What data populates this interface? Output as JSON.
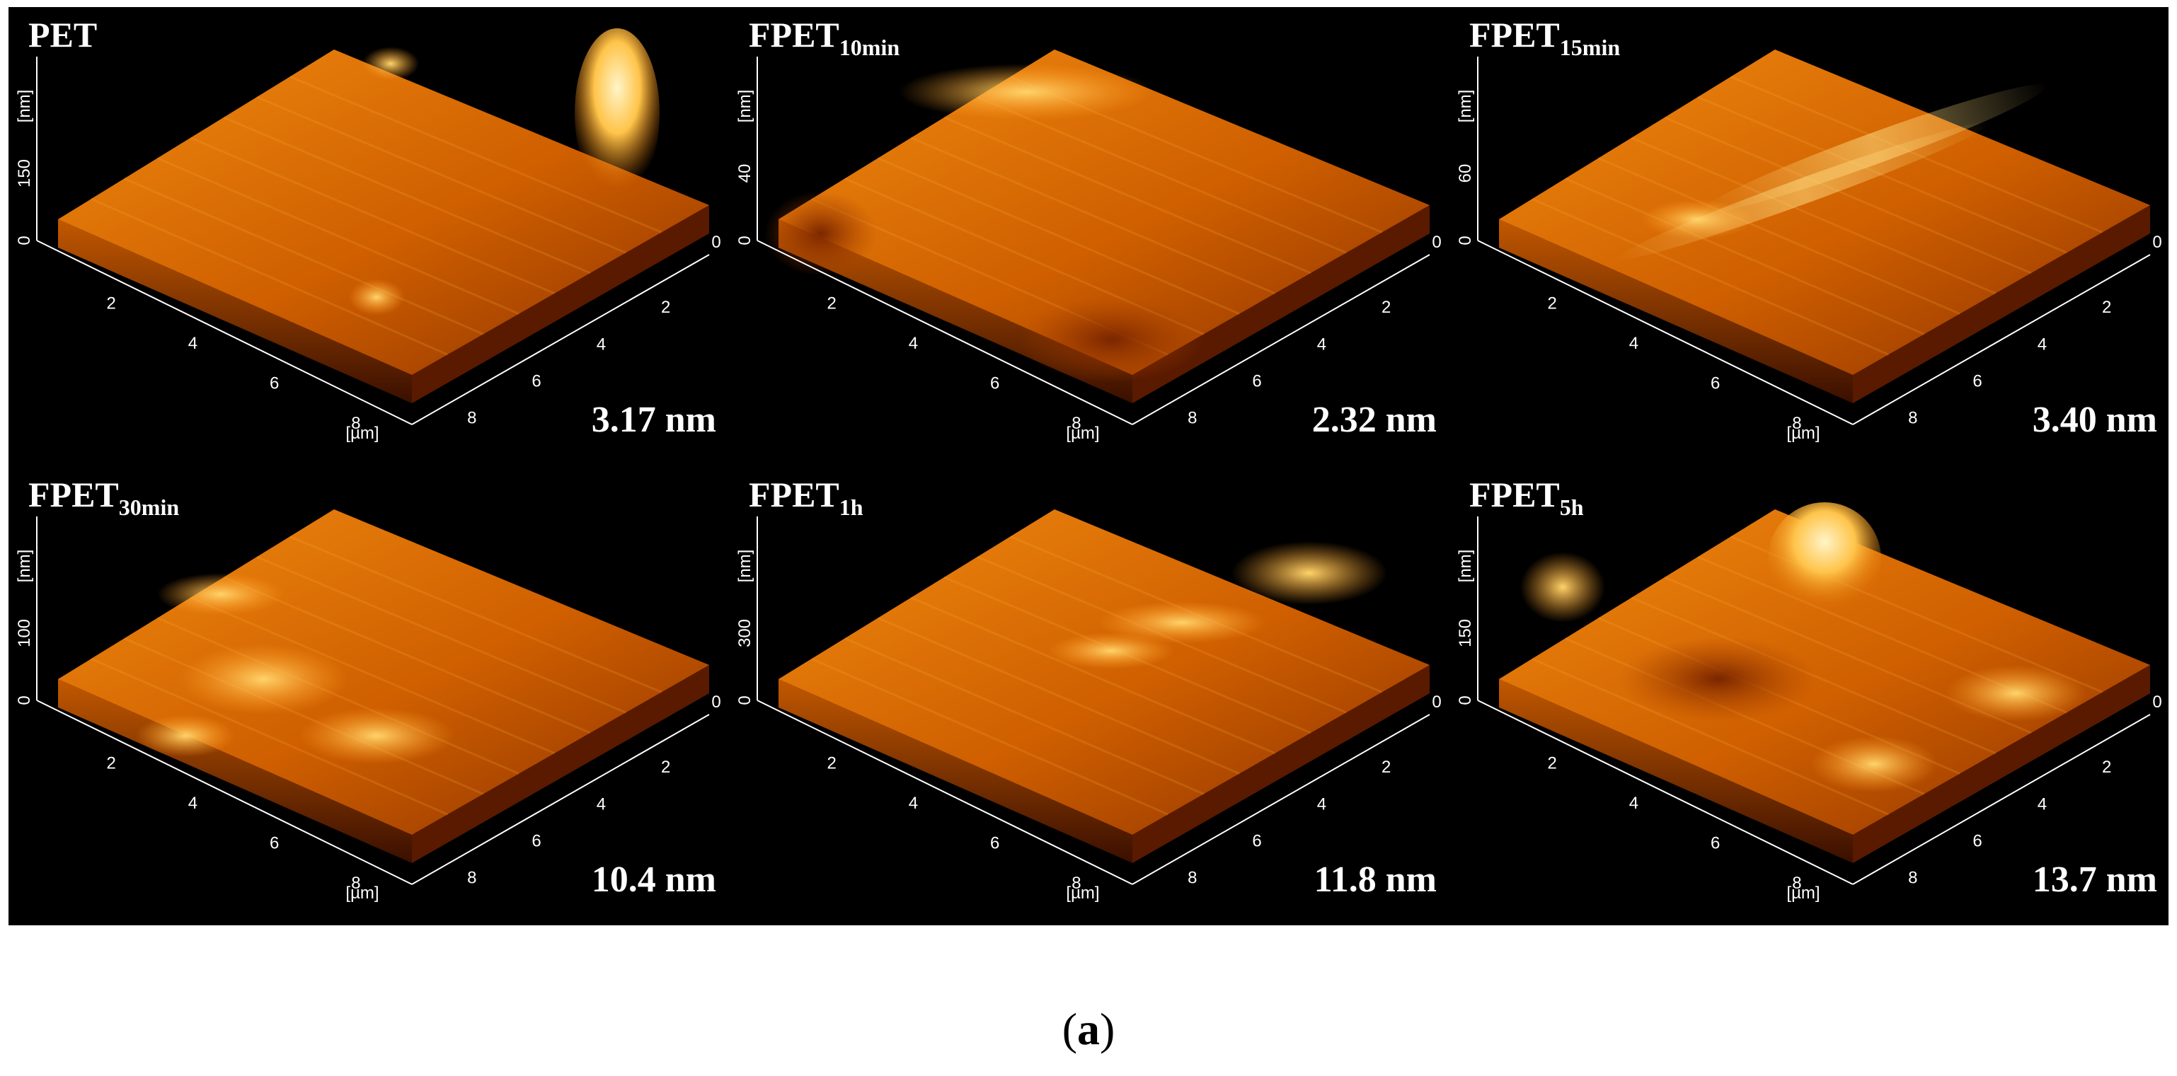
{
  "figure": {
    "label_open": "(",
    "label_letter": "a",
    "label_close": ")",
    "colors": {
      "background": "#000000",
      "surface_dark": "#6a1d00",
      "surface_mid": "#d66a00",
      "surface_light": "#ffe8a8",
      "axis": "#ffffff"
    },
    "axis_unit_z": "[nm]",
    "axis_unit_xy": "[µm]",
    "xy_ticks": [
      "2",
      "4",
      "6",
      "8"
    ],
    "zero_tick": "0",
    "panels": [
      {
        "id": "pet",
        "title_main": "PET",
        "title_sub": "",
        "z_max_label": "150",
        "roughness": "3.17 nm",
        "roughness_nm": 3.17
      },
      {
        "id": "fpet10",
        "title_main": "FPET",
        "title_sub": "10min",
        "z_max_label": "40",
        "roughness": "2.32 nm",
        "roughness_nm": 2.32
      },
      {
        "id": "fpet15",
        "title_main": "FPET",
        "title_sub": "15min",
        "z_max_label": "60",
        "roughness": "3.40 nm",
        "roughness_nm": 3.4
      },
      {
        "id": "fpet30",
        "title_main": "FPET",
        "title_sub": "30min",
        "z_max_label": "100",
        "roughness": "10.4 nm",
        "roughness_nm": 10.4
      },
      {
        "id": "fpet1h",
        "title_main": "FPET",
        "title_sub": "1h",
        "z_max_label": "300",
        "roughness": "11.8 nm",
        "roughness_nm": 11.8
      },
      {
        "id": "fpet5h",
        "title_main": "FPET",
        "title_sub": "5h",
        "z_max_label": "150",
        "roughness": "13.7 nm",
        "roughness_nm": 13.7
      }
    ]
  }
}
